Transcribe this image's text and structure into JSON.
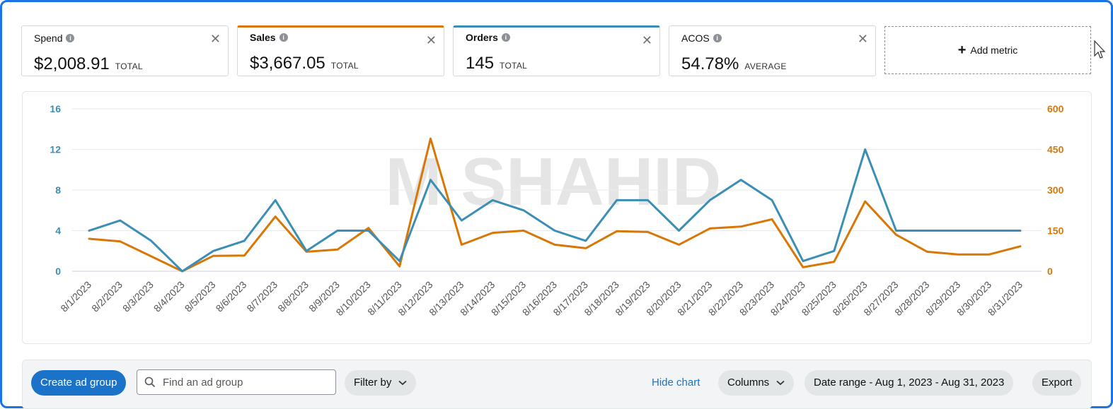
{
  "metrics": [
    {
      "label": "Spend",
      "value": "$2,008.91",
      "unit": "TOTAL",
      "selected": false,
      "color": ""
    },
    {
      "label": "Sales",
      "value": "$3,667.05",
      "unit": "TOTAL",
      "selected": true,
      "color": "#d97706"
    },
    {
      "label": "Orders",
      "value": "145",
      "unit": "TOTAL",
      "selected": true,
      "color": "#3b8eb5"
    },
    {
      "label": "ACOS",
      "value": "54.78%",
      "unit": "AVERAGE",
      "selected": false,
      "color": ""
    }
  ],
  "add_metric": {
    "label": "Add metric"
  },
  "colors": {
    "orders": "#3b8eb5",
    "sales": "#d97706",
    "primary": "#1a73c9"
  },
  "chart_data": {
    "type": "line",
    "x": [
      "8/1/2023",
      "8/2/2023",
      "8/3/2023",
      "8/4/2023",
      "8/5/2023",
      "8/6/2023",
      "8/7/2023",
      "8/8/2023",
      "8/9/2023",
      "8/10/2023",
      "8/11/2023",
      "8/12/2023",
      "8/13/2023",
      "8/14/2023",
      "8/15/2023",
      "8/16/2023",
      "8/17/2023",
      "8/18/2023",
      "8/19/2023",
      "8/20/2023",
      "8/21/2023",
      "8/22/2023",
      "8/23/2023",
      "8/24/2023",
      "8/25/2023",
      "8/26/2023",
      "8/27/2023",
      "8/28/2023",
      "8/29/2023",
      "8/30/2023",
      "8/31/2023"
    ],
    "series": [
      {
        "name": "Orders",
        "axis": "left",
        "color": "#3b8eb5",
        "values": [
          4,
          5,
          3,
          0,
          2,
          3,
          7,
          2,
          4,
          4,
          1,
          9,
          5,
          7,
          6,
          4,
          3,
          7,
          7,
          4,
          7,
          9,
          7,
          1,
          2,
          12,
          4,
          4,
          4,
          4,
          4
        ]
      },
      {
        "name": "Sales",
        "axis": "right",
        "color": "#d97706",
        "values": [
          120,
          110,
          55,
          0,
          57,
          58,
          202,
          72,
          80,
          160,
          18,
          490,
          98,
          142,
          150,
          98,
          85,
          148,
          145,
          98,
          158,
          165,
          192,
          15,
          35,
          258,
          135,
          72,
          62,
          62,
          92
        ]
      }
    ],
    "y_left": {
      "ticks": [
        0,
        4,
        8,
        12,
        16
      ],
      "range": [
        0,
        16
      ]
    },
    "y_right": {
      "ticks": [
        0,
        150,
        300,
        450,
        600
      ],
      "range": [
        0,
        600
      ]
    },
    "grid": true,
    "watermark": "M SHAHID"
  },
  "toolbar": {
    "create_label": "Create ad group",
    "search_placeholder": "Find an ad group",
    "filter_label": "Filter by",
    "hide_chart_label": "Hide chart",
    "columns_label": "Columns",
    "date_range_label": "Date range - Aug 1, 2023 - Aug 31, 2023",
    "export_label": "Export"
  }
}
